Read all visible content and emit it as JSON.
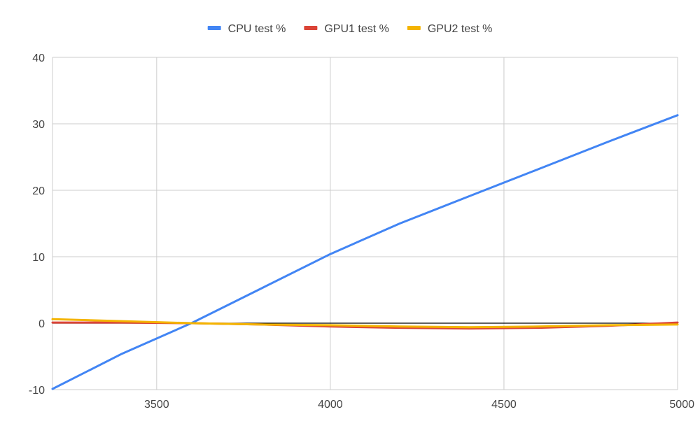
{
  "chart_data": {
    "type": "line",
    "title": "",
    "xlabel": "",
    "ylabel": "",
    "xlim": [
      3200,
      5000
    ],
    "ylim": [
      -10,
      40
    ],
    "x_ticks": [
      "3500",
      "4000",
      "4500",
      "5000"
    ],
    "y_ticks": [
      "-10",
      "0",
      "10",
      "20",
      "30",
      "40"
    ],
    "grid": true,
    "legend_position": "top-center",
    "zero_line_color": "#000000",
    "grid_color": "#cccccc",
    "series": [
      {
        "name": "CPU test %",
        "color": "#4285f4",
        "points": [
          [
            3200,
            -9.9
          ],
          [
            3400,
            -4.6
          ],
          [
            3600,
            0.0
          ],
          [
            3800,
            5.2
          ],
          [
            4000,
            10.4
          ],
          [
            4200,
            15.0
          ],
          [
            4400,
            19.1
          ],
          [
            4600,
            23.2
          ],
          [
            4800,
            27.3
          ],
          [
            5000,
            31.3
          ]
        ]
      },
      {
        "name": "GPU1 test %",
        "color": "#db4437",
        "points": [
          [
            3200,
            0.1
          ],
          [
            3400,
            0.1
          ],
          [
            3600,
            0.0
          ],
          [
            3800,
            -0.2
          ],
          [
            4000,
            -0.5
          ],
          [
            4200,
            -0.7
          ],
          [
            4400,
            -0.8
          ],
          [
            4600,
            -0.7
          ],
          [
            4800,
            -0.4
          ],
          [
            5000,
            0.1
          ]
        ]
      },
      {
        "name": "GPU2 test %",
        "color": "#f4b400",
        "points": [
          [
            3200,
            0.6
          ],
          [
            3400,
            0.3
          ],
          [
            3600,
            0.0
          ],
          [
            3800,
            -0.2
          ],
          [
            4000,
            -0.3
          ],
          [
            4200,
            -0.5
          ],
          [
            4400,
            -0.6
          ],
          [
            4600,
            -0.5
          ],
          [
            4800,
            -0.3
          ],
          [
            5000,
            -0.2
          ]
        ]
      }
    ]
  }
}
